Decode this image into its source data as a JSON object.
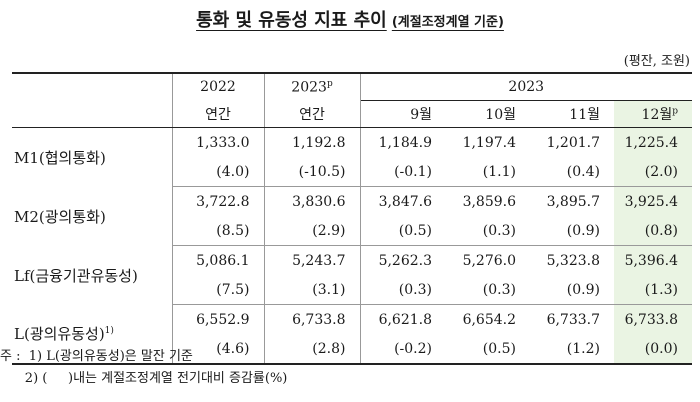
{
  "title": "통화 및 유동성 지표 추이",
  "subtitle": "(계절조정계열 기준)",
  "unit": "(평잔, 조원)",
  "header": {
    "y2022": "2022",
    "y2023p": "2023",
    "p_mark": "p",
    "y2023": "2023",
    "annual1": "연간",
    "annual2": "연간",
    "m9": "9월",
    "m10": "10월",
    "m11": "11월",
    "m12": "12월",
    "m12_mark": "p"
  },
  "rows": [
    {
      "label": "M1(협의통화)",
      "label_sup": "",
      "values": [
        "1,333.0",
        "1,192.8",
        "1,184.9",
        "1,197.4",
        "1,201.7",
        "1,225.4"
      ],
      "changes": [
        "(4.0)",
        "(-10.5)",
        "(-0.1)",
        "(1.1)",
        "(0.4)",
        "(2.0)"
      ]
    },
    {
      "label": "M2(광의통화)",
      "label_sup": "",
      "values": [
        "3,722.8",
        "3,830.6",
        "3,847.6",
        "3,859.6",
        "3,895.7",
        "3,925.4"
      ],
      "changes": [
        "(8.5)",
        "(2.9)",
        "(0.5)",
        "(0.3)",
        "(0.9)",
        "(0.8)"
      ]
    },
    {
      "label": "Lf(금융기관유동성)",
      "label_sup": "",
      "values": [
        "5,086.1",
        "5,243.7",
        "5,262.3",
        "5,276.0",
        "5,323.8",
        "5,396.4"
      ],
      "changes": [
        "(7.5)",
        "(3.1)",
        "(0.3)",
        "(0.3)",
        "(0.9)",
        "(1.3)"
      ]
    },
    {
      "label": "L(광의유동성)",
      "label_sup": "1)",
      "values": [
        "6,552.9",
        "6,733.8",
        "6,621.8",
        "6,654.2",
        "6,733.7",
        "6,733.8"
      ],
      "changes": [
        "(4.6)",
        "(2.8)",
        "(-0.2)",
        "(0.5)",
        "(1.2)",
        "(0.0)"
      ]
    }
  ],
  "notes": {
    "prefix": "주 :",
    "n1": "1) L(광의유동성)은 말잔 기준",
    "n2": "2) (     )내는 계절조정계열 전기대비 증감률(%)"
  },
  "colors": {
    "highlight": "#eaf4e3"
  }
}
